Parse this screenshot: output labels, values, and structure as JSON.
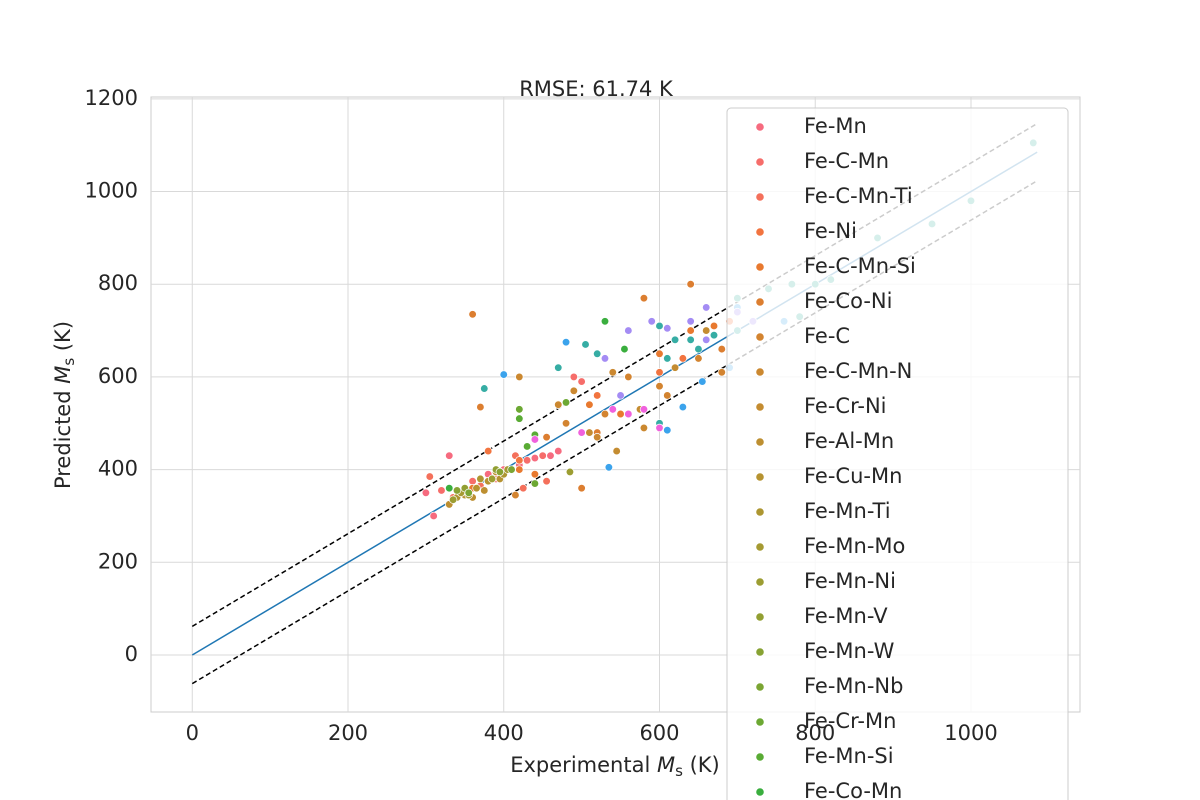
{
  "chart_data": {
    "type": "scatter",
    "title": "RMSE: 61.74 K",
    "xlabel": [
      "Experimental ",
      "M",
      "s",
      " (K)"
    ],
    "ylabel": [
      "Predicted ",
      "M",
      "s",
      " (K)"
    ],
    "xlim": [
      -53,
      1140
    ],
    "ylim": [
      -123,
      1204
    ],
    "xticks": [
      0,
      200,
      400,
      600,
      800,
      1000
    ],
    "yticks": [
      0,
      200,
      400,
      600,
      800,
      1000,
      1200
    ],
    "grid": true,
    "legend": "upper right",
    "reference_lines": [
      {
        "x": [
          0,
          1085
        ],
        "values": [
          0,
          1085
        ],
        "color": "#1f77b4",
        "style": "solid"
      },
      {
        "x": [
          0,
          1085
        ],
        "values": [
          61.74,
          1146.74
        ],
        "color": "#000000",
        "style": "dashed"
      },
      {
        "x": [
          0,
          1085
        ],
        "values": [
          -61.74,
          1023.26
        ],
        "color": "#000000",
        "style": "dashed"
      }
    ],
    "series": [
      {
        "name": "Fe-Mn",
        "color": "#f66b7f",
        "x": [
          300,
          310,
          330,
          350,
          380,
          400,
          420,
          440,
          460,
          470
        ],
        "values": [
          350,
          300,
          430,
          360,
          390,
          400,
          410,
          425,
          430,
          440
        ]
      },
      {
        "name": "Fe-C-Mn",
        "color": "#f66d6a",
        "x": [
          320,
          340,
          360,
          390,
          410,
          430,
          450,
          490,
          500
        ],
        "values": [
          355,
          345,
          375,
          380,
          400,
          420,
          430,
          600,
          590
        ]
      },
      {
        "name": "Fe-C-Mn-Ti",
        "color": "#f4705b",
        "x": [
          305,
          335,
          370,
          395,
          415,
          425,
          455
        ],
        "values": [
          385,
          340,
          365,
          395,
          430,
          360,
          375
        ]
      },
      {
        "name": "Fe-Ni",
        "color": "#f2743f",
        "x": [
          380,
          420,
          470,
          520,
          560,
          600,
          630,
          660,
          690
        ],
        "values": [
          440,
          420,
          540,
          560,
          600,
          610,
          640,
          700,
          720
        ]
      },
      {
        "name": "Fe-C-Mn-Si",
        "color": "#e8792f",
        "x": [
          360,
          420,
          440,
          510,
          550,
          600,
          640,
          670
        ],
        "values": [
          360,
          400,
          390,
          540,
          520,
          650,
          700,
          710
        ]
      },
      {
        "name": "Fe-Co-Ni",
        "color": "#dc7e30",
        "x": [
          360,
          370,
          455,
          500,
          520,
          580,
          640,
          680
        ],
        "values": [
          735,
          535,
          470,
          360,
          480,
          770,
          800,
          660
        ]
      },
      {
        "name": "Fe-C",
        "color": "#d38430",
        "x": [
          415,
          480,
          530,
          560,
          600,
          610,
          650,
          680
        ],
        "values": [
          345,
          500,
          520,
          600,
          580,
          560,
          640,
          610
        ]
      },
      {
        "name": "Fe-C-Mn-N",
        "color": "#cb8830",
        "x": [
          420,
          470,
          490,
          520,
          540,
          580
        ],
        "values": [
          600,
          540,
          570,
          470,
          610,
          490
        ]
      },
      {
        "name": "Fe-Cr-Ni",
        "color": "#c48c31",
        "x": [
          510,
          545,
          575,
          620,
          660
        ],
        "values": [
          480,
          440,
          530,
          620,
          700
        ]
      },
      {
        "name": "Fe-Al-Mn",
        "color": "#bd8f31",
        "x": [
          330,
          345,
          360,
          375,
          390
        ],
        "values": [
          325,
          350,
          340,
          355,
          395
        ]
      },
      {
        "name": "Fe-Cu-Mn",
        "color": "#b69331",
        "x": [
          350,
          365,
          380,
          395
        ],
        "values": [
          345,
          360,
          375,
          380
        ]
      },
      {
        "name": "Fe-Mn-Ti",
        "color": "#ad9631",
        "x": [
          340,
          370,
          400
        ],
        "values": [
          340,
          380,
          390
        ]
      },
      {
        "name": "Fe-Mn-Mo",
        "color": "#a59a32",
        "x": [
          345,
          355,
          405
        ],
        "values": [
          350,
          345,
          400
        ]
      },
      {
        "name": "Fe-Mn-Ni",
        "color": "#9c9d32",
        "x": [
          335,
          385,
          485
        ],
        "values": [
          335,
          380,
          395
        ]
      },
      {
        "name": "Fe-Mn-V",
        "color": "#929f32",
        "x": [
          350,
          390
        ],
        "values": [
          360,
          400
        ]
      },
      {
        "name": "Fe-Mn-W",
        "color": "#87a233",
        "x": [
          340,
          395
        ],
        "values": [
          355,
          395
        ]
      },
      {
        "name": "Fe-Mn-Nb",
        "color": "#7ba533",
        "x": [
          355,
          410
        ],
        "values": [
          350,
          400
        ]
      },
      {
        "name": "Fe-Cr-Mn",
        "color": "#6ca833",
        "x": [
          420,
          440,
          480
        ],
        "values": [
          530,
          370,
          545
        ]
      },
      {
        "name": "Fe-Mn-Si",
        "color": "#59ab34",
        "x": [
          420,
          430,
          440
        ],
        "values": [
          510,
          450,
          475
        ]
      },
      {
        "name": "Fe-Co-Mn",
        "color": "#3aae3e",
        "x": [
          330,
          530,
          555
        ],
        "values": [
          360,
          720,
          660
        ]
      },
      {
        "color": "#36ada4",
        "x": [
          590,
          600,
          610,
          620,
          640,
          650,
          670,
          700,
          720,
          600,
          375,
          470,
          505,
          520
        ],
        "values": [
          720,
          710,
          640,
          680,
          680,
          660,
          690,
          700,
          720,
          500,
          575,
          620,
          670,
          650
        ]
      },
      {
        "color": "#3ba3ec",
        "x": [
          400,
          480,
          535,
          610,
          630,
          655,
          690,
          700,
          760
        ],
        "values": [
          605,
          675,
          405,
          485,
          535,
          590,
          620,
          750,
          720
        ]
      },
      {
        "color": "#a48cf4",
        "x": [
          530,
          560,
          590,
          610,
          640,
          660,
          700,
          720,
          550,
          660
        ],
        "values": [
          640,
          700,
          720,
          705,
          720,
          750,
          740,
          720,
          560,
          680
        ]
      },
      {
        "color": "#f061dd",
        "x": [
          440,
          500,
          540,
          560,
          580,
          600
        ],
        "values": [
          465,
          480,
          530,
          520,
          530,
          490
        ]
      },
      {
        "color": "#36ad9a",
        "x": [
          700,
          740,
          770,
          800,
          820,
          880,
          950,
          1000,
          1080,
          780
        ],
        "values": [
          770,
          790,
          800,
          800,
          810,
          900,
          930,
          980,
          1105,
          730
        ]
      }
    ]
  }
}
